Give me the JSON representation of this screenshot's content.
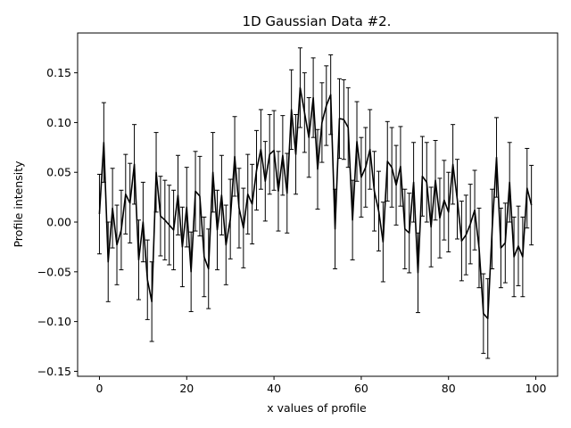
{
  "chart_data": {
    "type": "line",
    "title": "1D Gaussian Data #2.",
    "xlabel": "x values of profile",
    "ylabel": "Profile intensity",
    "xlim": [
      -5,
      105
    ],
    "ylim": [
      -0.155,
      0.19
    ],
    "xticks": [
      0,
      20,
      40,
      60,
      80,
      100
    ],
    "yticks": [
      -0.15,
      -0.1,
      -0.05,
      0.0,
      0.05,
      0.1,
      0.15
    ],
    "ytick_labels": [
      "−0.15",
      "−0.10",
      "−0.05",
      "0.00",
      "0.05",
      "0.10",
      "0.15"
    ],
    "grid": false,
    "legend": "none",
    "series": [
      {
        "color": "#000000",
        "errorbar_halfwidth": 0.04,
        "x": [
          0,
          1,
          2,
          3,
          4,
          5,
          6,
          7,
          8,
          9,
          10,
          11,
          12,
          13,
          14,
          15,
          16,
          17,
          18,
          19,
          20,
          21,
          22,
          23,
          24,
          25,
          26,
          27,
          28,
          29,
          30,
          31,
          32,
          33,
          34,
          35,
          36,
          37,
          38,
          39,
          40,
          41,
          42,
          43,
          44,
          45,
          46,
          47,
          48,
          49,
          50,
          51,
          52,
          53,
          54,
          55,
          56,
          57,
          58,
          59,
          60,
          61,
          62,
          63,
          64,
          65,
          66,
          67,
          68,
          69,
          70,
          71,
          72,
          73,
          74,
          75,
          76,
          77,
          78,
          79,
          80,
          81,
          82,
          83,
          84,
          85,
          86,
          87,
          88,
          89,
          90,
          91,
          92,
          93,
          94,
          95,
          96,
          97,
          98,
          99
        ],
        "y": [
          0.008,
          0.08,
          -0.04,
          0.014,
          -0.023,
          -0.008,
          0.028,
          0.019,
          0.058,
          -0.038,
          0.0,
          -0.058,
          -0.08,
          0.05,
          0.006,
          0.002,
          -0.003,
          -0.008,
          0.027,
          -0.025,
          0.015,
          -0.05,
          0.031,
          0.026,
          -0.035,
          -0.047,
          0.05,
          -0.008,
          0.027,
          -0.023,
          0.003,
          0.066,
          0.014,
          -0.006,
          0.028,
          0.018,
          0.052,
          0.073,
          0.041,
          0.068,
          0.072,
          0.031,
          0.067,
          0.029,
          0.113,
          0.068,
          0.135,
          0.11,
          0.085,
          0.125,
          0.053,
          0.1,
          0.117,
          0.128,
          -0.007,
          0.104,
          0.103,
          0.095,
          0.002,
          0.081,
          0.045,
          0.055,
          0.073,
          0.031,
          0.011,
          -0.02,
          0.061,
          0.055,
          0.037,
          0.056,
          -0.007,
          -0.011,
          0.04,
          -0.051,
          0.046,
          0.04,
          -0.005,
          0.042,
          0.004,
          0.022,
          0.01,
          0.058,
          0.023,
          -0.019,
          -0.013,
          -0.002,
          0.012,
          -0.026,
          -0.092,
          -0.097,
          -0.007,
          0.065,
          -0.026,
          -0.021,
          0.04,
          -0.035,
          -0.024,
          -0.035,
          0.034,
          0.017
        ]
      }
    ]
  }
}
